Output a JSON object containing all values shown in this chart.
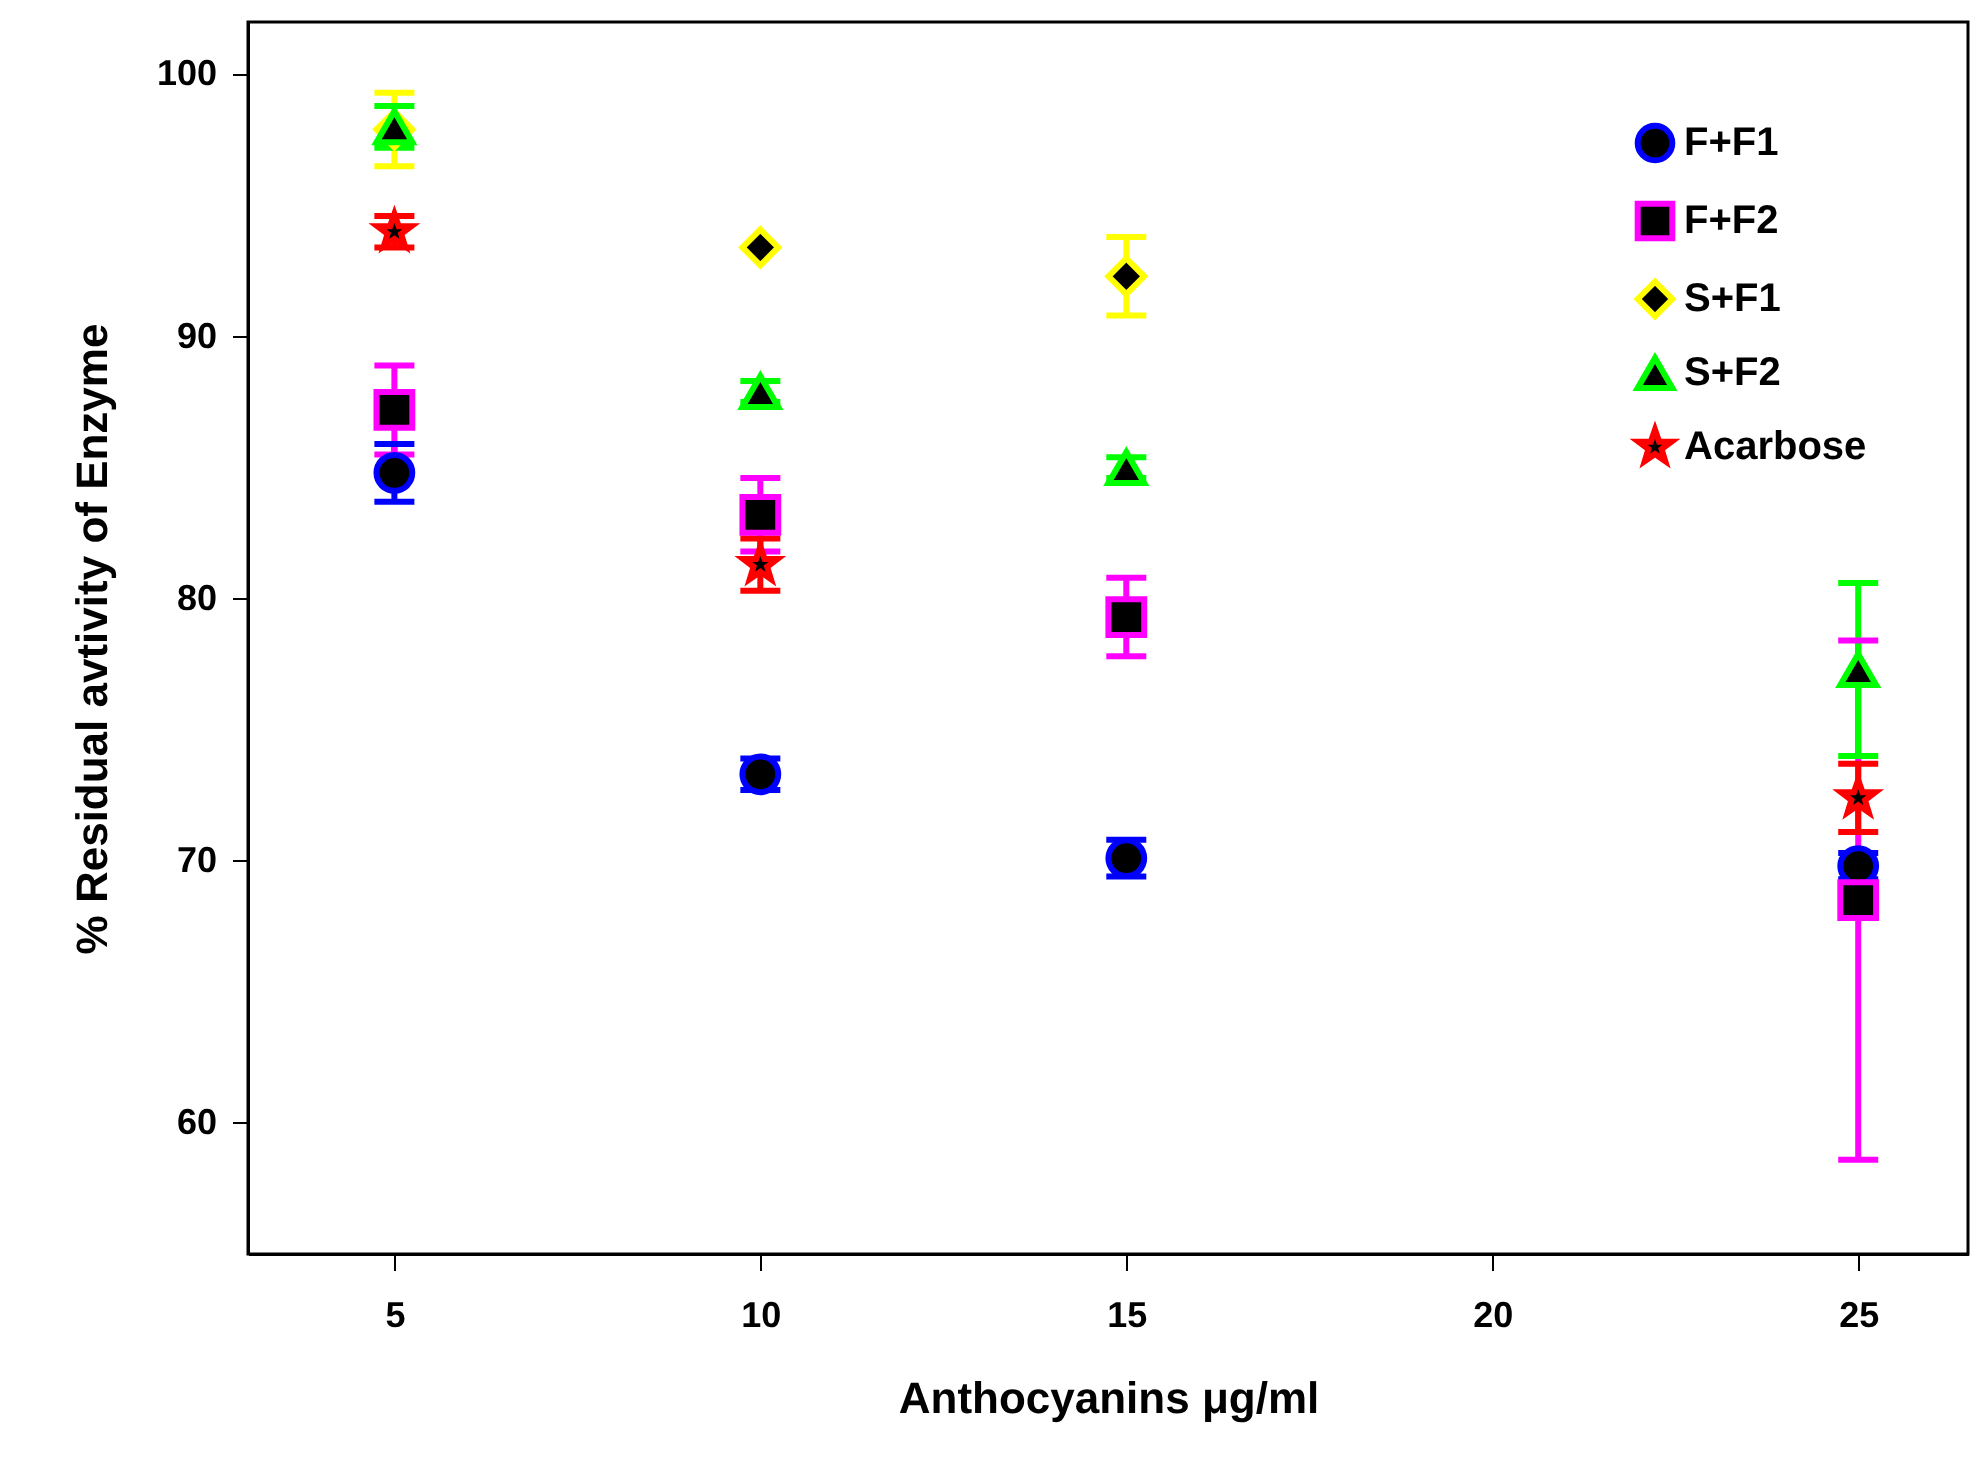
{
  "chart_data": {
    "type": "scatter",
    "xlabel": "Anthocyanins μg/ml",
    "ylabel": "% Residual avtivity of Enzyme",
    "x": [
      5,
      10,
      15,
      25
    ],
    "xlim": [
      3,
      26.5
    ],
    "xticks": [
      5,
      10,
      15,
      20,
      25
    ],
    "ylim": [
      55,
      102
    ],
    "yticks": [
      60,
      70,
      80,
      90,
      100
    ],
    "grid": false,
    "legend": "top right",
    "series": [
      {
        "name": " F+F1",
        "color": "#0000ff",
        "marker": "circle",
        "values": [
          84.8,
          73.3,
          70.1,
          69.8
        ],
        "errors": [
          1.1,
          0.6,
          0.7,
          0.5
        ]
      },
      {
        "name": " F+F2",
        "color": "#ff00ff",
        "marker": "square",
        "values": [
          87.2,
          83.2,
          79.3,
          68.5
        ],
        "errors": [
          1.7,
          1.4,
          1.5,
          9.9
        ]
      },
      {
        "name": "S+F1",
        "color": "#ffff00",
        "marker": "diamond",
        "values": [
          97.9,
          93.4,
          92.3,
          null
        ],
        "errors": [
          1.4,
          null,
          1.5,
          null
        ]
      },
      {
        "name": "S+F2",
        "color": "#00ff00",
        "marker": "triangle",
        "values": [
          98.0,
          87.9,
          85.0,
          77.3
        ],
        "errors": [
          0.8,
          0.4,
          0.4,
          3.3
        ]
      },
      {
        "name": "Acarbose",
        "color": "#ff0000",
        "marker": "star",
        "values": [
          94.0,
          81.3,
          null,
          72.4
        ],
        "errors": [
          0.6,
          1.0,
          null,
          1.3
        ]
      }
    ]
  }
}
